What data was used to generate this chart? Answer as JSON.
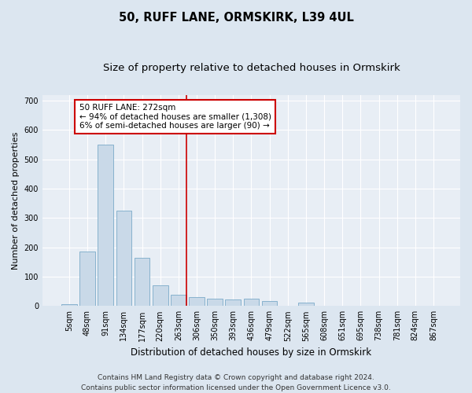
{
  "title": "50, RUFF LANE, ORMSKIRK, L39 4UL",
  "subtitle": "Size of property relative to detached houses in Ormskirk",
  "xlabel": "Distribution of detached houses by size in Ormskirk",
  "ylabel": "Number of detached properties",
  "categories": [
    "5sqm",
    "48sqm",
    "91sqm",
    "134sqm",
    "177sqm",
    "220sqm",
    "263sqm",
    "306sqm",
    "350sqm",
    "393sqm",
    "436sqm",
    "479sqm",
    "522sqm",
    "565sqm",
    "608sqm",
    "651sqm",
    "695sqm",
    "738sqm",
    "781sqm",
    "824sqm",
    "867sqm"
  ],
  "values": [
    5,
    185,
    550,
    325,
    165,
    70,
    38,
    30,
    25,
    22,
    25,
    18,
    0,
    12,
    0,
    0,
    0,
    0,
    0,
    0,
    0
  ],
  "bar_color": "#c9d9e8",
  "bar_edge_color": "#7aaac8",
  "vline_x": 6.45,
  "vline_color": "#cc0000",
  "annotation_text": "50 RUFF LANE: 272sqm\n← 94% of detached houses are smaller (1,308)\n6% of semi-detached houses are larger (90) →",
  "annotation_box_color": "#ffffff",
  "annotation_box_edge": "#cc0000",
  "ylim": [
    0,
    720
  ],
  "yticks": [
    0,
    100,
    200,
    300,
    400,
    500,
    600,
    700
  ],
  "footer1": "Contains HM Land Registry data © Crown copyright and database right 2024.",
  "footer2": "Contains public sector information licensed under the Open Government Licence v3.0.",
  "bg_color": "#dce6f0",
  "plot_bg_color": "#e8eef5",
  "title_fontsize": 10.5,
  "subtitle_fontsize": 9.5,
  "tick_fontsize": 7,
  "ylabel_fontsize": 8,
  "xlabel_fontsize": 8.5,
  "footer_fontsize": 6.5,
  "ann_fontsize": 7.5
}
